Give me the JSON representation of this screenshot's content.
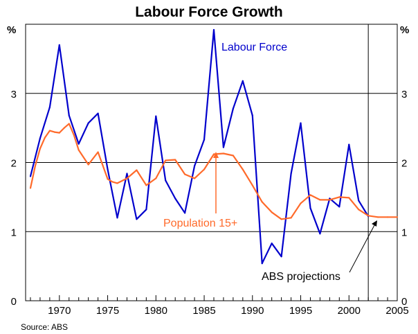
{
  "colors": {
    "labour_force": "#0000cc",
    "population": "#ff6a2a",
    "axis": "#000000",
    "grid": "#000000",
    "background": "#ffffff"
  },
  "chart_data": {
    "type": "line",
    "title": "Labour Force Growth",
    "ylabel_left": "%",
    "ylabel_right": "%",
    "source": "Source: ABS",
    "xlim": [
      1966.5,
      2005.0
    ],
    "ylim": [
      0,
      4
    ],
    "yticks": [
      0,
      1,
      2,
      3
    ],
    "xticks": [
      1970,
      1975,
      1980,
      1985,
      1990,
      1995,
      2000,
      2005
    ],
    "grid": "horizontal",
    "projection_start": 2002,
    "series": [
      {
        "name": "Labour Force",
        "color": "#0000cc",
        "x": [
          1967,
          1968,
          1969,
          1970,
          1971,
          1972,
          1973,
          1974,
          1975,
          1976,
          1977,
          1978,
          1979,
          1980,
          1981,
          1982,
          1983,
          1984,
          1985,
          1986,
          1987,
          1988,
          1989,
          1990,
          1991,
          1992,
          1993,
          1994,
          1995,
          1996,
          1997,
          1998,
          1999,
          2000,
          2001,
          2002
        ],
        "y": [
          1.8,
          2.35,
          2.8,
          3.7,
          2.68,
          2.27,
          2.57,
          2.71,
          1.9,
          1.2,
          1.84,
          1.18,
          1.32,
          2.67,
          1.74,
          1.48,
          1.27,
          1.95,
          2.33,
          3.92,
          2.22,
          2.78,
          3.18,
          2.68,
          0.54,
          0.83,
          0.64,
          1.84,
          2.57,
          1.34,
          0.97,
          1.48,
          1.36,
          2.26,
          1.45,
          1.22
        ]
      },
      {
        "name": "Population 15+",
        "color": "#ff6a2a",
        "x": [
          1967,
          1967.5,
          1968,
          1968.5,
          1969,
          1969.5,
          1970,
          1970.5,
          1971,
          1971.5,
          1972,
          1973,
          1974,
          1975,
          1975.5,
          1976,
          1977,
          1977.5,
          1978,
          1979,
          1980,
          1981,
          1982,
          1983,
          1984,
          1985,
          1986,
          1987,
          1988,
          1989,
          1990,
          1991,
          1992,
          1993,
          1994,
          1995,
          1996,
          1997,
          1998,
          1999,
          2000,
          2001,
          2002,
          2003,
          2004,
          2005
        ],
        "y": [
          1.63,
          1.95,
          2.2,
          2.36,
          2.46,
          2.44,
          2.43,
          2.5,
          2.56,
          2.4,
          2.18,
          1.97,
          2.15,
          1.76,
          1.72,
          1.7,
          1.77,
          1.83,
          1.89,
          1.67,
          1.77,
          2.03,
          2.04,
          1.83,
          1.77,
          1.9,
          2.12,
          2.13,
          2.1,
          1.9,
          1.67,
          1.43,
          1.28,
          1.18,
          1.2,
          1.41,
          1.53,
          1.46,
          1.46,
          1.5,
          1.49,
          1.32,
          1.23,
          1.21,
          1.21,
          1.21
        ]
      }
    ],
    "annotations": {
      "labour_force_label": "Labour Force",
      "population_label": "Population 15+",
      "projections_label": "ABS projections"
    }
  }
}
